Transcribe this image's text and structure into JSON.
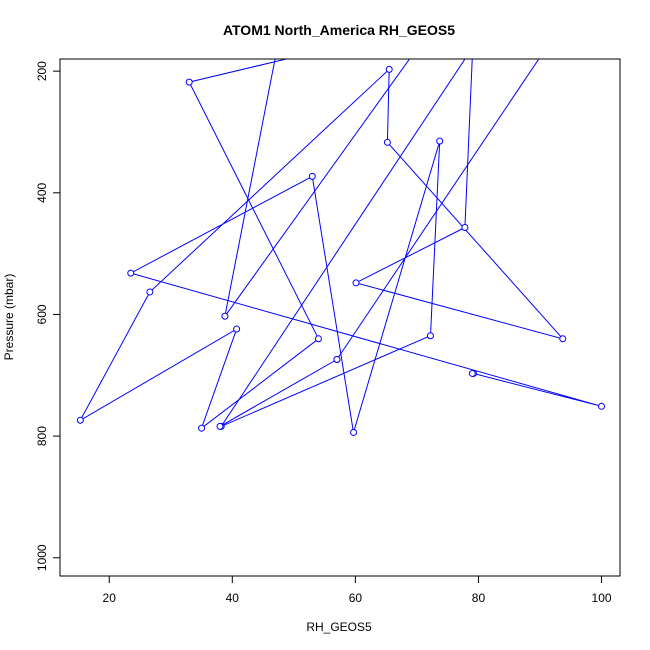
{
  "chart_data": {
    "type": "line",
    "title": "ATOM1 North_America RH_GEOS5",
    "xlabel": "RH_GEOS5",
    "ylabel": "Pressure (mbar)",
    "xlim": [
      12,
      103
    ],
    "ylim": [
      1030,
      180
    ],
    "y_reversed": true,
    "x_ticks": [
      20,
      40,
      60,
      80,
      100
    ],
    "y_ticks": [
      200,
      400,
      600,
      800,
      1000
    ],
    "grid": false,
    "legend": "none",
    "marker": "open-circle",
    "color": "#0000ff",
    "series": [
      {
        "points": [
          [
            50.0,
            177
          ],
          [
            33.0,
            218
          ],
          [
            54.0,
            640
          ],
          [
            35.0,
            787
          ],
          [
            40.7,
            624
          ],
          [
            15.3,
            774
          ],
          [
            26.6,
            563
          ],
          [
            65.5,
            197
          ],
          [
            65.2,
            317
          ],
          [
            93.7,
            640
          ],
          [
            60.1,
            548
          ],
          [
            77.8,
            457
          ],
          [
            79.0,
            177
          ],
          [
            78.0,
            177
          ],
          [
            38.2,
            784
          ],
          [
            72.2,
            635
          ],
          [
            73.7,
            315
          ],
          [
            59.7,
            794
          ],
          [
            53.0,
            373
          ],
          [
            23.5,
            532
          ],
          [
            100.0,
            751
          ],
          [
            79.2,
            697
          ],
          [
            79.0,
            697
          ]
        ]
      },
      {
        "points": [
          [
            57.0,
            674
          ],
          [
            38.0,
            784
          ]
        ]
      },
      {
        "points": [
          [
            47.0,
            177
          ],
          [
            38.8,
            603
          ],
          [
            69.0,
            177
          ]
        ]
      },
      {
        "points": [
          [
            90.0,
            177
          ],
          [
            57.0,
            674
          ]
        ]
      }
    ]
  }
}
